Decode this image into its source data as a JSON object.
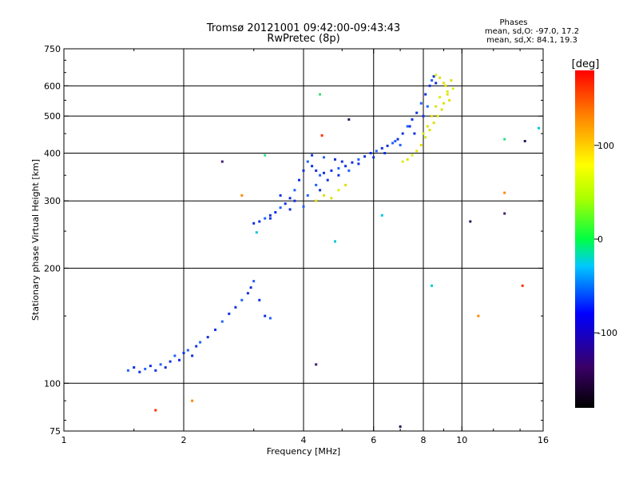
{
  "header": {
    "title_line1": "Tromsø 20121001 09:42:00-09:43:43",
    "title_line2": "RwPretec (8p)",
    "stats_title": "Phases",
    "stats_line1": "mean, sd,O: -97.0, 17.2",
    "stats_line2": "mean, sd,X: 84.1, 19.3"
  },
  "chart_data": {
    "type": "scatter",
    "xlabel": "Frequency [MHz]",
    "ylabel": "Stationary phase Virtual Height [km]",
    "xscale": "log",
    "yscale": "log",
    "xlim": [
      1,
      16
    ],
    "ylim": [
      75,
      750
    ],
    "x_ticks": [
      1,
      2,
      4,
      6,
      8,
      10,
      16
    ],
    "y_ticks": [
      75,
      100,
      200,
      300,
      400,
      500,
      600,
      750
    ],
    "grid": true,
    "colorbar": {
      "label": "[deg]",
      "range": [
        -180,
        180
      ],
      "ticks": [
        -100,
        0,
        100
      ]
    },
    "series": [
      {
        "points": [
          [
            1.45,
            108
          ],
          [
            1.5,
            110
          ],
          [
            1.55,
            107
          ],
          [
            1.6,
            109
          ],
          [
            1.65,
            111
          ],
          [
            1.7,
            108
          ],
          [
            1.75,
            112
          ],
          [
            1.8,
            110
          ],
          [
            1.85,
            114
          ],
          [
            1.9,
            118
          ],
          [
            1.95,
            115
          ],
          [
            2.0,
            120
          ],
          [
            2.05,
            122
          ],
          [
            2.1,
            118
          ],
          [
            2.15,
            125
          ],
          [
            2.2,
            128
          ],
          [
            2.3,
            132
          ],
          [
            2.4,
            138
          ],
          [
            2.5,
            145
          ],
          [
            2.6,
            152
          ],
          [
            2.7,
            158
          ],
          [
            2.8,
            165
          ],
          [
            2.9,
            172
          ],
          [
            2.95,
            178
          ],
          [
            3.0,
            185
          ],
          [
            3.1,
            165
          ],
          [
            3.2,
            150
          ],
          [
            3.3,
            148
          ],
          [
            3.0,
            262
          ],
          [
            3.1,
            265
          ],
          [
            3.2,
            270
          ],
          [
            3.3,
            275
          ],
          [
            3.4,
            280
          ],
          [
            3.5,
            288
          ],
          [
            3.6,
            295
          ],
          [
            3.7,
            305
          ],
          [
            3.8,
            320
          ],
          [
            3.9,
            340
          ],
          [
            4.0,
            360
          ],
          [
            4.1,
            380
          ],
          [
            4.2,
            370
          ],
          [
            4.3,
            360
          ],
          [
            4.4,
            350
          ],
          [
            4.5,
            355
          ],
          [
            4.7,
            360
          ],
          [
            4.9,
            365
          ],
          [
            5.1,
            370
          ],
          [
            5.3,
            378
          ],
          [
            5.5,
            385
          ],
          [
            5.7,
            392
          ],
          [
            5.9,
            400
          ],
          [
            6.1,
            405
          ],
          [
            6.3,
            412
          ],
          [
            6.5,
            418
          ],
          [
            6.7,
            425
          ],
          [
            6.9,
            435
          ],
          [
            7.1,
            450
          ],
          [
            7.3,
            470
          ],
          [
            7.5,
            490
          ],
          [
            7.7,
            510
          ],
          [
            7.9,
            540
          ],
          [
            8.1,
            570
          ],
          [
            8.3,
            600
          ],
          [
            8.4,
            620
          ],
          [
            8.5,
            635
          ],
          [
            4.2,
            395
          ],
          [
            4.5,
            390
          ],
          [
            4.8,
            385
          ],
          [
            5.0,
            380
          ],
          [
            4.3,
            330
          ],
          [
            4.6,
            340
          ],
          [
            4.9,
            350
          ],
          [
            5.2,
            360
          ],
          [
            6.0,
            390
          ],
          [
            6.4,
            400
          ],
          [
            7.0,
            420
          ],
          [
            7.6,
            450
          ],
          [
            8.0,
            500
          ],
          [
            8.2,
            530
          ],
          [
            3.5,
            310
          ],
          [
            3.8,
            300
          ],
          [
            4.0,
            290
          ],
          [
            3.3,
            270
          ],
          [
            3.7,
            285
          ],
          [
            4.1,
            310
          ],
          [
            4.4,
            320
          ],
          [
            5.5,
            375
          ],
          [
            6.8,
            430
          ],
          [
            7.4,
            470
          ],
          [
            8.6,
            610
          ]
        ]
      },
      {
        "points": [
          [
            8.6,
            640
          ],
          [
            8.8,
            630
          ],
          [
            9.0,
            610
          ],
          [
            9.2,
            580
          ],
          [
            9.3,
            550
          ],
          [
            8.9,
            520
          ],
          [
            8.7,
            500
          ],
          [
            8.5,
            480
          ],
          [
            8.3,
            460
          ],
          [
            8.1,
            440
          ],
          [
            7.9,
            420
          ],
          [
            7.7,
            405
          ],
          [
            7.5,
            395
          ],
          [
            8.2,
            470
          ],
          [
            8.4,
            500
          ],
          [
            8.8,
            560
          ],
          [
            9.1,
            600
          ],
          [
            9.4,
            620
          ],
          [
            9.5,
            590
          ],
          [
            9.0,
            540
          ],
          [
            7.3,
            385
          ],
          [
            7.1,
            380
          ],
          [
            4.5,
            310
          ],
          [
            4.7,
            305
          ],
          [
            4.9,
            320
          ],
          [
            5.1,
            330
          ],
          [
            4.3,
            300
          ],
          [
            8.0,
            450
          ],
          [
            8.6,
            530
          ],
          [
            9.2,
            570
          ]
        ]
      },
      {
        "points": [
          [
            4.4,
            570
          ],
          [
            3.05,
            248
          ],
          [
            4.8,
            235
          ],
          [
            3.2,
            395
          ],
          [
            6.3,
            275
          ],
          [
            8.4,
            180
          ],
          [
            12.8,
            435
          ],
          [
            15.6,
            465
          ]
        ]
      },
      {
        "points": [
          [
            4.45,
            445
          ],
          [
            2.8,
            310
          ],
          [
            12.8,
            315
          ],
          [
            1.7,
            85
          ],
          [
            2.1,
            90
          ],
          [
            11.0,
            150
          ],
          [
            14.2,
            180
          ]
        ]
      },
      {
        "points": [
          [
            2.5,
            380
          ],
          [
            5.2,
            490
          ],
          [
            10.5,
            265
          ],
          [
            12.8,
            278
          ],
          [
            14.4,
            430
          ],
          [
            7.0,
            77
          ],
          [
            4.3,
            112
          ]
        ]
      }
    ]
  }
}
